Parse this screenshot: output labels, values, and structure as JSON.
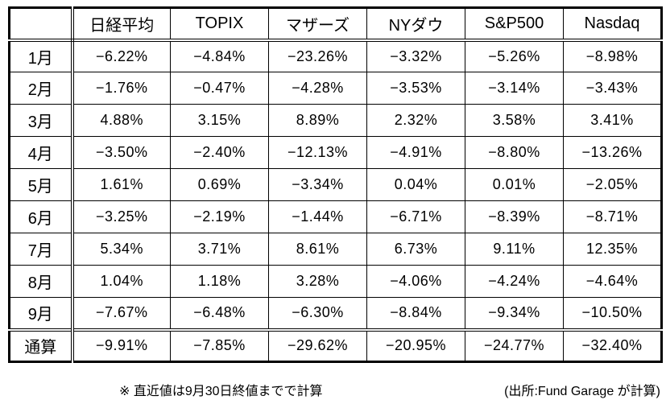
{
  "colors": {
    "background": "#ffffff",
    "border": "#000000",
    "text": "#000000"
  },
  "chart_data": {
    "type": "table",
    "columns": [
      "",
      "日経平均",
      "TOPIX",
      "マザーズ",
      "NYダウ",
      "S&P500",
      "Nasdaq"
    ],
    "rows": [
      {
        "label": "1月",
        "values": [
          "−6.22%",
          "−4.84%",
          "−23.26%",
          "−3.32%",
          "−5.26%",
          "−8.98%"
        ]
      },
      {
        "label": "2月",
        "values": [
          "−1.76%",
          "−0.47%",
          "−4.28%",
          "−3.53%",
          "−3.14%",
          "−3.43%"
        ]
      },
      {
        "label": "3月",
        "values": [
          "4.88%",
          "3.15%",
          "8.89%",
          "2.32%",
          "3.58%",
          "3.41%"
        ]
      },
      {
        "label": "4月",
        "values": [
          "−3.50%",
          "−2.40%",
          "−12.13%",
          "−4.91%",
          "−8.80%",
          "−13.26%"
        ]
      },
      {
        "label": "5月",
        "values": [
          "1.61%",
          "0.69%",
          "−3.34%",
          "0.04%",
          "0.01%",
          "−2.05%"
        ]
      },
      {
        "label": "6月",
        "values": [
          "−3.25%",
          "−2.19%",
          "−1.44%",
          "−6.71%",
          "−8.39%",
          "−8.71%"
        ]
      },
      {
        "label": "7月",
        "values": [
          "5.34%",
          "3.71%",
          "8.61%",
          "6.73%",
          "9.11%",
          "12.35%"
        ]
      },
      {
        "label": "8月",
        "values": [
          "1.04%",
          "1.18%",
          "3.28%",
          "−4.06%",
          "−4.24%",
          "−4.64%"
        ]
      },
      {
        "label": "9月",
        "values": [
          "−7.67%",
          "−6.48%",
          "−6.30%",
          "−8.84%",
          "−9.34%",
          "−10.50%"
        ]
      },
      {
        "label": "通算",
        "values": [
          "−9.91%",
          "−7.85%",
          "−29.62%",
          "−20.95%",
          "−24.77%",
          "−32.40%"
        ]
      }
    ],
    "footnote_left": "※ 直近値は9月30日終値までで計算",
    "footnote_right": "(出所:Fund Garage が計算)"
  }
}
